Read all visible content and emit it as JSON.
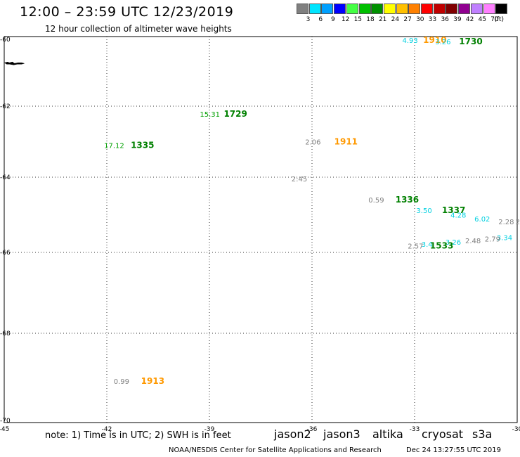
{
  "header": {
    "title": "12:00 – 23:59 UTC 12/23/2019",
    "subtitle": "12 hour collection of altimeter wave heights"
  },
  "color_legend": {
    "unit_label": "(ft)",
    "bins": [
      {
        "label": "3",
        "color": "#808080"
      },
      {
        "label": "6",
        "color": "#00e5ff"
      },
      {
        "label": "9",
        "color": "#00a0ff"
      },
      {
        "label": "12",
        "color": "#0000ff"
      },
      {
        "label": "15",
        "color": "#44ff44"
      },
      {
        "label": "18",
        "color": "#00c000"
      },
      {
        "label": "21",
        "color": "#009000"
      },
      {
        "label": "24",
        "color": "#ffff00"
      },
      {
        "label": "27",
        "color": "#ffc000"
      },
      {
        "label": "30",
        "color": "#ff8000"
      },
      {
        "label": "33",
        "color": "#ff0000"
      },
      {
        "label": "36",
        "color": "#c00000"
      },
      {
        "label": "39",
        "color": "#800000"
      },
      {
        "label": "42",
        "color": "#900090"
      },
      {
        "label": "45",
        "color": "#c080ff"
      },
      {
        "label": "70",
        "color": "#ff80ff"
      },
      {
        "label": "",
        "color": "#000000"
      }
    ]
  },
  "map": {
    "lon_range": [
      -45,
      -30
    ],
    "lat_range": [
      -70,
      -60
    ],
    "lon_ticks": [
      {
        "value": -45,
        "label": "-45"
      },
      {
        "value": -42,
        "label": "-42"
      },
      {
        "value": -39,
        "label": "-39"
      },
      {
        "value": -36,
        "label": "-36"
      },
      {
        "value": -33,
        "label": "-33"
      },
      {
        "value": -30,
        "label": "-30"
      }
    ],
    "lat_ticks": [
      {
        "value": -60,
        "label": "-60"
      },
      {
        "value": -62,
        "label": "-62"
      },
      {
        "value": -64,
        "label": "-64"
      },
      {
        "value": -66,
        "label": "-66"
      },
      {
        "value": -68,
        "label": "-68"
      },
      {
        "value": -70,
        "label": "-70"
      }
    ],
    "grid": "dotted",
    "coastline_fragment": {
      "lon": -44.7,
      "lat": -60.7
    },
    "observations": [
      {
        "text": "4.93",
        "lon": -33.36,
        "lat": -60.02,
        "color": "#00d0e0"
      },
      {
        "text": "1910",
        "lon": -32.75,
        "lat": -60.02,
        "color": "#ff9900",
        "bold": true
      },
      {
        "text": "3.26",
        "lon": -32.4,
        "lat": -60.06,
        "color": "#00d0e0"
      },
      {
        "text": "1730",
        "lon": -31.7,
        "lat": -60.06,
        "color": "#008000",
        "bold": true
      },
      {
        "text": "15.31",
        "lon": -39.28,
        "lat": -62.22,
        "color": "#00a000"
      },
      {
        "text": "1729",
        "lon": -38.58,
        "lat": -62.22,
        "color": "#008000",
        "bold": true
      },
      {
        "text": "17.12",
        "lon": -42.08,
        "lat": -63.1,
        "color": "#00a000"
      },
      {
        "text": "1335",
        "lon": -41.3,
        "lat": -63.1,
        "color": "#008000",
        "bold": true
      },
      {
        "text": "2.06",
        "lon": -36.2,
        "lat": -63.0,
        "color": "#808080"
      },
      {
        "text": "1911",
        "lon": -35.35,
        "lat": -63.0,
        "color": "#ff9900",
        "bold": true
      },
      {
        "text": "2:45",
        "lon": -36.6,
        "lat": -64.04,
        "color": "#808080"
      },
      {
        "text": "0.59",
        "lon": -34.35,
        "lat": -64.6,
        "color": "#808080"
      },
      {
        "text": "1336",
        "lon": -33.56,
        "lat": -64.6,
        "color": "#008000",
        "bold": true
      },
      {
        "text": "3.50",
        "lon": -32.95,
        "lat": -64.88,
        "color": "#00d0e0"
      },
      {
        "text": "1337",
        "lon": -32.2,
        "lat": -64.88,
        "color": "#008000",
        "bold": true
      },
      {
        "text": "4.28",
        "lon": -31.95,
        "lat": -65.0,
        "color": "#00d0e0"
      },
      {
        "text": "6.02",
        "lon": -31.25,
        "lat": -65.1,
        "color": "#00d0e0"
      },
      {
        "text": "2.28",
        "lon": -30.55,
        "lat": -65.18,
        "color": "#808080"
      },
      {
        "text": "2",
        "lon": -30.05,
        "lat": -65.18,
        "color": "#808080"
      },
      {
        "text": "3.34",
        "lon": -30.6,
        "lat": -65.6,
        "color": "#00d0e0"
      },
      {
        "text": "2.79",
        "lon": -30.95,
        "lat": -65.64,
        "color": "#808080"
      },
      {
        "text": "2.48",
        "lon": -31.52,
        "lat": -65.68,
        "color": "#808080"
      },
      {
        "text": "3.26",
        "lon": -32.1,
        "lat": -65.72,
        "color": "#00d0e0"
      },
      {
        "text": "3.4",
        "lon": -32.8,
        "lat": -65.78,
        "color": "#00d0e0"
      },
      {
        "text": "2.57",
        "lon": -33.2,
        "lat": -65.82,
        "color": "#808080"
      },
      {
        "text": "1533",
        "lon": -32.55,
        "lat": -65.82,
        "color": "#008000",
        "bold": true
      },
      {
        "text": "0.99",
        "lon": -41.8,
        "lat": -69.1,
        "color": "#808080"
      },
      {
        "text": "1913",
        "lon": -41.0,
        "lat": -69.1,
        "color": "#ff9900",
        "bold": true
      }
    ]
  },
  "footer": {
    "note": "note: 1) Time is in UTC; 2) SWH is in feet",
    "satellites": [
      {
        "name": "jason2",
        "color": "#0000ff"
      },
      {
        "name": "jason3",
        "color": "#008000"
      },
      {
        "name": "altika",
        "color": "#ff9900"
      },
      {
        "name": "cryosat",
        "color": "#ff0000"
      },
      {
        "name": "s3a",
        "color": "#800000"
      }
    ],
    "credit": "NOAA/NESDIS Center for Satellite Applications and Research",
    "timestamp": "Dec 24 13:27:55 UTC 2019"
  }
}
